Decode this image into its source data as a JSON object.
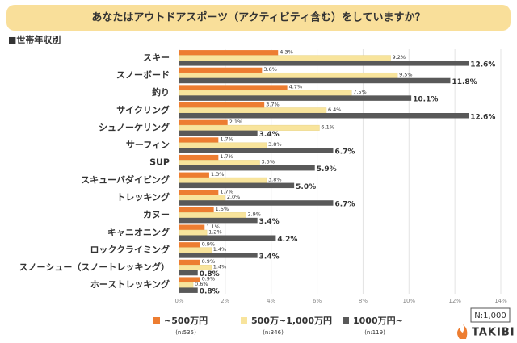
{
  "chart_data": {
    "type": "hbar",
    "title": "あなたはアウトドアスポーツ（アクティビティ含む）をしていますか？",
    "subtitle": "■世帯年収別",
    "note": "N:1,000",
    "logo": "TAKIBI",
    "categories": [
      "スキー",
      "スノーボード",
      "釣り",
      "サイクリング",
      "シュノーケリング",
      "サーフィン",
      "SUP",
      "スキューバダイビング",
      "トレッキング",
      "カヌー",
      "キャニオニング",
      "ロッククライミング",
      "スノーシュー（スノートレッキング）",
      "ホーストレッキング"
    ],
    "series": [
      {
        "name": "~500万円",
        "sample": "(n:535)",
        "color": "#ed7d31",
        "values": [
          4.3,
          3.6,
          4.7,
          3.7,
          2.1,
          1.7,
          1.7,
          1.3,
          1.7,
          1.5,
          1.1,
          0.9,
          0.9,
          0.9
        ],
        "value_labels": [
          "4.3%",
          "3.6%",
          "4.7%",
          "3.7%",
          "2.1%",
          "1.7%",
          "1.7%",
          "1.3%",
          "1.7%",
          "1.5%",
          "1.1%",
          "0.9%",
          "0.9%",
          "0.9%"
        ]
      },
      {
        "name": "500万~1,000万円",
        "sample": "(n:346)",
        "color": "#f8e49c",
        "values": [
          9.2,
          9.5,
          7.5,
          6.4,
          6.1,
          3.8,
          3.5,
          3.8,
          2.0,
          2.9,
          1.2,
          1.4,
          1.4,
          0.6
        ],
        "value_labels": [
          "9.2%",
          "9.5%",
          "7.5%",
          "6.4%",
          "6.1%",
          "3.8%",
          "3.5%",
          "3.8%",
          "2.0%",
          "2.9%",
          "1.2%",
          "1.4%",
          "1.4%",
          "0.6%"
        ]
      },
      {
        "name": "1000万円~",
        "sample": "(n:119)",
        "color": "#595959",
        "values": [
          12.6,
          11.8,
          10.1,
          12.6,
          3.4,
          6.7,
          5.9,
          5.0,
          6.7,
          3.4,
          4.2,
          3.4,
          0.8,
          0.8
        ],
        "value_labels": [
          "12.6%",
          "11.8%",
          "10.1%",
          "12.6%",
          "3.4%",
          "6.7%",
          "5.9%",
          "5.0%",
          "6.7%",
          "3.4%",
          "4.2%",
          "3.4%",
          "0.8%",
          "0.8%"
        ]
      }
    ],
    "xlim": [
      0,
      14
    ],
    "xticks": [
      {
        "value": 0,
        "label": "0%"
      },
      {
        "value": 2,
        "label": "2%"
      },
      {
        "value": 4,
        "label": "4%"
      },
      {
        "value": 6,
        "label": "6%"
      },
      {
        "value": 8,
        "label": "8%"
      },
      {
        "value": 10,
        "label": "10%"
      },
      {
        "value": 12,
        "label": "12%"
      },
      {
        "value": 14,
        "label": "14%"
      }
    ],
    "grid": true
  }
}
